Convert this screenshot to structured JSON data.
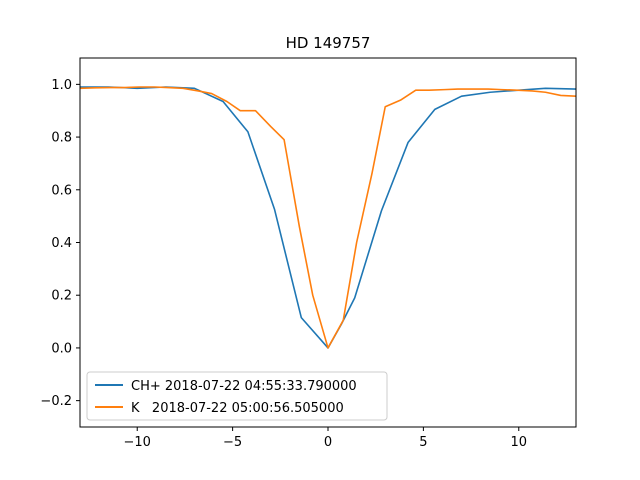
{
  "chart_data": {
    "type": "line",
    "title": "HD 149757",
    "xlabel": "",
    "ylabel": "",
    "xlim": [
      -13,
      13
    ],
    "ylim": [
      -0.3,
      1.1
    ],
    "xticks": [
      -10,
      -5,
      0,
      5,
      10
    ],
    "xtick_labels": [
      "−10",
      "−5",
      "0",
      "5",
      "10"
    ],
    "yticks": [
      -0.2,
      0.0,
      0.2,
      0.4,
      0.6,
      0.8,
      1.0
    ],
    "ytick_labels": [
      "−0.2",
      "0.0",
      "0.2",
      "0.4",
      "0.6",
      "0.8",
      "1.0"
    ],
    "grid": false,
    "legend_position": "lower-left",
    "series": [
      {
        "name": "CH+ 2018-07-22 04:55:33.790000",
        "color": "#1f77b4",
        "x": [
          -13,
          -11.5,
          -10,
          -8.5,
          -7,
          -5.5,
          -4.2,
          -2.8,
          -1.4,
          0,
          0.7,
          1.4,
          2.8,
          4.2,
          5.6,
          7.0,
          8.5,
          10.0,
          11.4,
          13.0
        ],
        "y": [
          0.99,
          0.99,
          0.985,
          0.99,
          0.985,
          0.935,
          0.82,
          0.525,
          0.115,
          0.0,
          0.09,
          0.19,
          0.52,
          0.78,
          0.905,
          0.955,
          0.97,
          0.978,
          0.985,
          0.982
        ]
      },
      {
        "name": "K   2018-07-22 05:00:56.505000",
        "color": "#ff7f0e",
        "x": [
          -13,
          -12.2,
          -11.4,
          -10.7,
          -9.9,
          -9.1,
          -8.4,
          -7.6,
          -6.8,
          -6.1,
          -5.3,
          -4.6,
          -3.8,
          -3.0,
          -2.3,
          -1.5,
          -0.8,
          0,
          0.8,
          1.5,
          2.3,
          3.0,
          3.8,
          4.6,
          5.3,
          6.1,
          6.8,
          7.6,
          8.4,
          9.1,
          9.9,
          10.7,
          11.4,
          12.2,
          13.0
        ],
        "y": [
          0.985,
          0.987,
          0.988,
          0.988,
          0.99,
          0.99,
          0.988,
          0.985,
          0.975,
          0.965,
          0.935,
          0.9,
          0.9,
          0.84,
          0.79,
          0.46,
          0.2,
          0.0,
          0.105,
          0.4,
          0.66,
          0.915,
          0.94,
          0.978,
          0.978,
          0.98,
          0.982,
          0.982,
          0.982,
          0.98,
          0.978,
          0.975,
          0.97,
          0.958,
          0.955
        ]
      }
    ]
  }
}
